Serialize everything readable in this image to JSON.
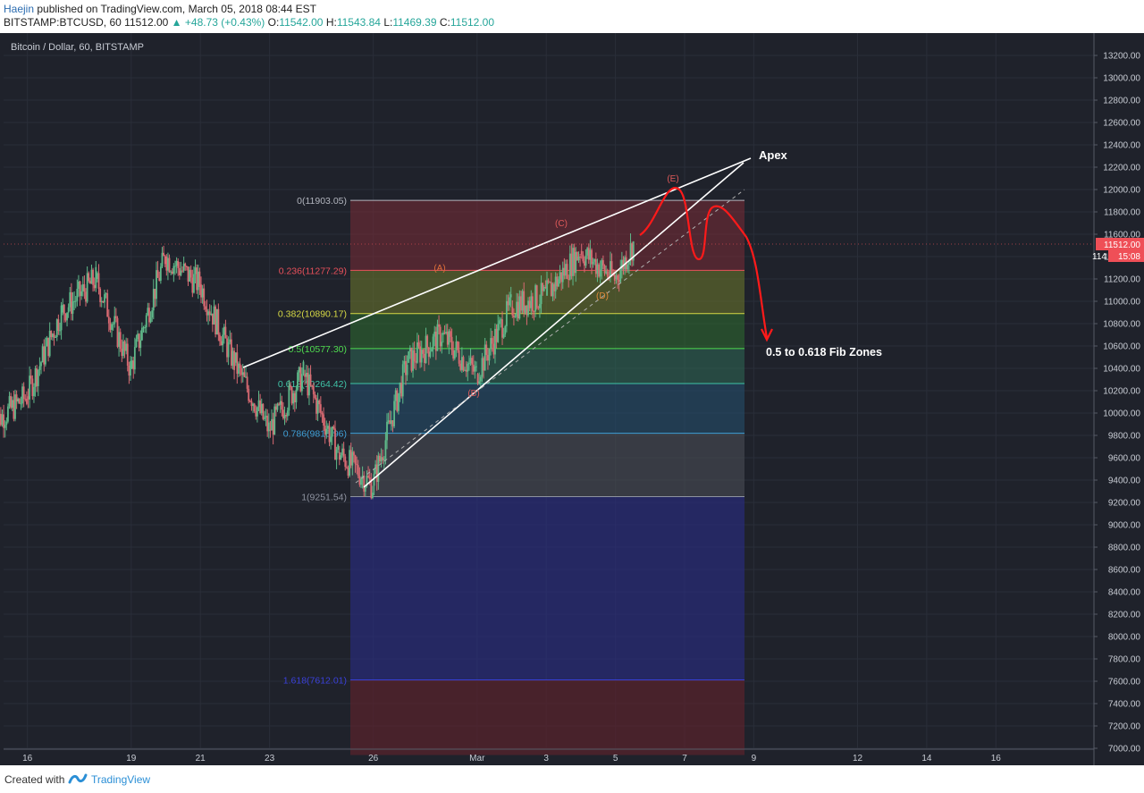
{
  "header": {
    "author": "Haejin",
    "published": "published on TradingView.com, March 05, 2018 08:44 EST",
    "symbol": "BITSTAMP:BTCUSD, 60",
    "last": "11512.00",
    "change": "▲ +48.73 (+0.43%)",
    "o_label": "O:",
    "o_value": "11542.00",
    "h_label": "H:",
    "h_value": "11543.84",
    "l_label": "L:",
    "l_value": "11469.39",
    "c_label": "C:",
    "c_value": "11512.00"
  },
  "footer": {
    "created": "Created with",
    "brand": "TradingView"
  },
  "colors": {
    "background": "#1f222b",
    "up": "#5fb98a",
    "down": "#d96a72",
    "annotation_red": "#ff1a1a",
    "price_tag": "#ef4f57"
  },
  "chart_data": {
    "type": "candlestick",
    "title": "Bitcoin / Dollar, 60, BITSTAMP",
    "ylim": [
      6900,
      13300
    ],
    "y_ticks": [
      7000,
      7200,
      7400,
      7600,
      7800,
      8000,
      8200,
      8400,
      8600,
      8800,
      9000,
      9200,
      9400,
      9600,
      9800,
      10000,
      10200,
      10400,
      10600,
      10800,
      11000,
      11200,
      11400,
      11600,
      11800,
      12000,
      12200,
      12400,
      12600,
      12800,
      13000,
      13200
    ],
    "x_ticks": [
      "16",
      "19",
      "21",
      "23",
      "26",
      "Mar",
      "3",
      "5",
      "7",
      "9",
      "12",
      "14",
      "16"
    ],
    "last_price": "11512.00",
    "countdown": "15:08",
    "partial_price_label": "11⁠4",
    "fib_levels": [
      {
        "label": "0(11903.05)",
        "ratio": 0,
        "price": 11903.05,
        "color": "#b2b5be"
      },
      {
        "label": "0.236(11277.29)",
        "ratio": 0.236,
        "price": 11277.29,
        "color": "#e8505b"
      },
      {
        "label": "0.382(10890.17)",
        "ratio": 0.382,
        "price": 10890.17,
        "color": "#d6d945"
      },
      {
        "label": "0.5(10577.30)",
        "ratio": 0.5,
        "price": 10577.3,
        "color": "#4fdb4f"
      },
      {
        "label": "0.618(10264.42)",
        "ratio": 0.618,
        "price": 10264.42,
        "color": "#3fc3a6"
      },
      {
        "label": "0.786(9818.96)",
        "ratio": 0.786,
        "price": 9818.96,
        "color": "#3f9fd6"
      },
      {
        "label": "1(9251.54)",
        "ratio": 1,
        "price": 9251.54,
        "color": "#8e93a0"
      },
      {
        "label": "1.618(7612.01)",
        "ratio": 1.618,
        "price": 7612.01,
        "color": "#3a40d8"
      }
    ],
    "wave_labels": [
      "(A)",
      "(B)",
      "(C)",
      "(D)",
      "(E)"
    ],
    "annotations": [
      "Apex",
      "0.5 to 0.618 Fib Zones"
    ],
    "ohlc_hourly_approx": {
      "start": "Feb 15",
      "segments": [
        {
          "from": "Feb 15",
          "to": "Feb 16",
          "open": 9900,
          "close": 10150
        },
        {
          "from": "Feb 16",
          "to": "Feb 17",
          "open": 10150,
          "close": 10900
        },
        {
          "from": "Feb 17",
          "to": "Feb 18",
          "open": 10900,
          "close": 11200
        },
        {
          "from": "Feb 18",
          "to": "Feb 19",
          "open": 11200,
          "close": 10400
        },
        {
          "from": "Feb 19",
          "to": "Feb 20",
          "open": 10400,
          "close": 11400
        },
        {
          "from": "Feb 20",
          "to": "Feb 21",
          "open": 11400,
          "close": 11150
        },
        {
          "from": "Feb 21",
          "to": "Feb 22",
          "open": 11150,
          "close": 10450
        },
        {
          "from": "Feb 22",
          "to": "Feb 23",
          "open": 10450,
          "close": 9850
        },
        {
          "from": "Feb 23",
          "to": "Feb 24",
          "open": 9850,
          "close": 10350
        },
        {
          "from": "Feb 24",
          "to": "Feb 25",
          "open": 10350,
          "close": 9650
        },
        {
          "from": "Feb 25",
          "to": "Feb 26",
          "open": 9650,
          "close": 9350
        },
        {
          "from": "Feb 26",
          "to": "Feb 27",
          "open": 9350,
          "close": 10450
        },
        {
          "from": "Feb 27",
          "to": "Feb 28",
          "open": 10450,
          "close": 10700
        },
        {
          "from": "Feb 28",
          "to": "Mar 1",
          "open": 10700,
          "close": 10350
        },
        {
          "from": "Mar 1",
          "to": "Mar 2",
          "open": 10350,
          "close": 10950
        },
        {
          "from": "Mar 2",
          "to": "Mar 3",
          "open": 10950,
          "close": 11050
        },
        {
          "from": "Mar 3",
          "to": "Mar 4",
          "open": 11050,
          "close": 11450
        },
        {
          "from": "Mar 4",
          "to": "Mar 5",
          "open": 11450,
          "close": 11200
        },
        {
          "from": "Mar 5",
          "to": "Mar 5 13:00",
          "open": 11200,
          "close": 11512
        }
      ]
    }
  }
}
